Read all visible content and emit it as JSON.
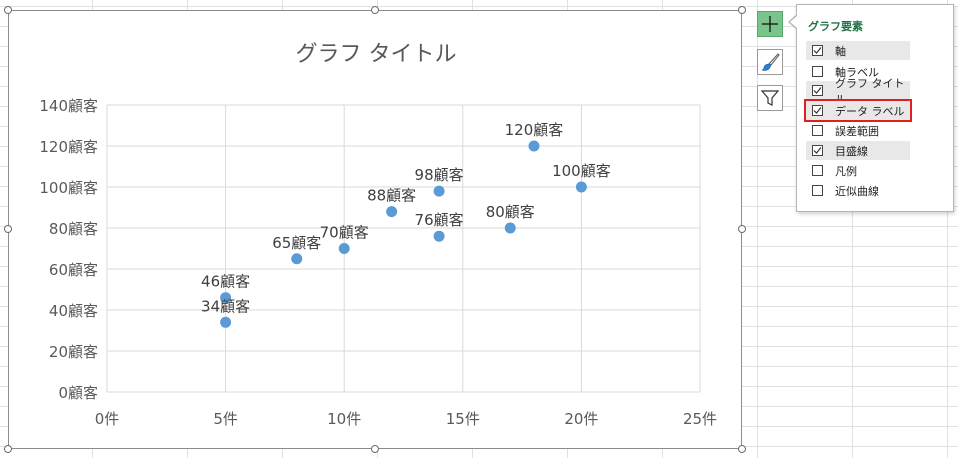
{
  "chart_data": {
    "type": "scatter",
    "title": "グラフ タイトル",
    "x": [
      5,
      5,
      8,
      10,
      12,
      14,
      14,
      17,
      18,
      20
    ],
    "y": [
      34,
      46,
      65,
      70,
      88,
      98,
      76,
      80,
      120,
      100
    ],
    "data_labels": [
      "34顧客",
      "46顧客",
      "65顧客",
      "70顧客",
      "88顧客",
      "98顧客",
      "76顧客",
      "80顧客",
      "120顧客",
      "100顧客"
    ],
    "xlim": [
      0,
      25
    ],
    "ylim": [
      0,
      140
    ],
    "x_ticks": [
      0,
      5,
      10,
      15,
      20,
      25
    ],
    "y_ticks": [
      0,
      20,
      40,
      60,
      80,
      100,
      120,
      140
    ],
    "x_tick_labels": [
      "0件",
      "5件",
      "10件",
      "15件",
      "20件",
      "25件"
    ],
    "y_tick_labels": [
      "0顧客",
      "20顧客",
      "40顧客",
      "60顧客",
      "80顧客",
      "100顧客",
      "120顧客",
      "140顧客"
    ],
    "grid": true,
    "marker_color": "#5b9bd5"
  },
  "chart_tools": {
    "elements_icon": "plus-icon",
    "styles_icon": "paintbrush-icon",
    "filters_icon": "funnel-icon"
  },
  "elements_panel": {
    "title": "グラフ要素",
    "items": [
      {
        "label": "軸",
        "checked": true
      },
      {
        "label": "軸ラベル",
        "checked": false
      },
      {
        "label": "グラフ タイトル",
        "checked": true
      },
      {
        "label": "データ ラベル",
        "checked": true
      },
      {
        "label": "誤差範囲",
        "checked": false
      },
      {
        "label": "目盛線",
        "checked": true
      },
      {
        "label": "凡例",
        "checked": false
      },
      {
        "label": "近似曲線",
        "checked": false
      }
    ],
    "accent_color": "#217346",
    "highlight_color": "#e0201e"
  }
}
